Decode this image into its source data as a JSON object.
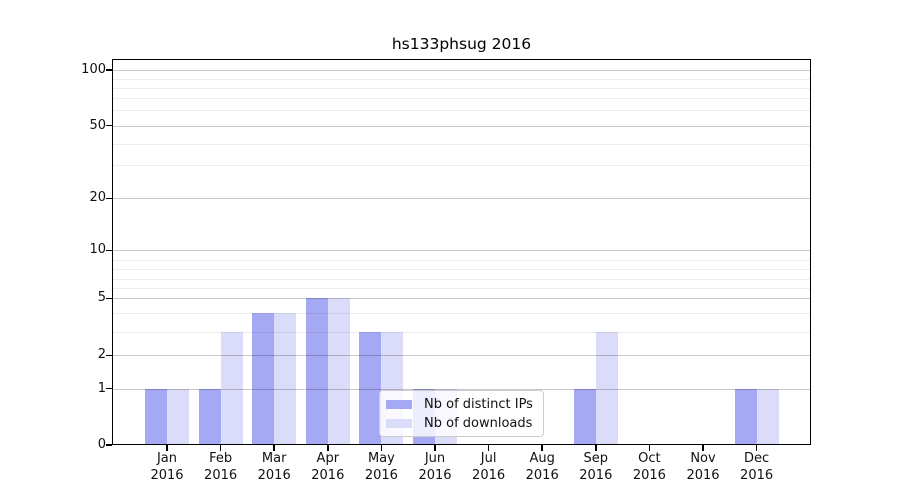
{
  "figure": {
    "title": "hs133phsug 2016"
  },
  "chart_data": {
    "type": "bar",
    "title": "hs133phsug 2016",
    "x": {
      "months": [
        "Jan",
        "Feb",
        "Mar",
        "Apr",
        "May",
        "Jun",
        "Jul",
        "Aug",
        "Sep",
        "Oct",
        "Nov",
        "Dec"
      ],
      "year": "2016"
    },
    "series": [
      {
        "name": "Nb of distinct IPs",
        "color": "#a5a8f3",
        "values": [
          1,
          1,
          4,
          5,
          3,
          1,
          0,
          0,
          1,
          0,
          0,
          1
        ]
      },
      {
        "name": "Nb of downloads",
        "color": "#dbdcfa",
        "values": [
          1,
          3,
          4,
          5,
          3,
          1,
          0,
          0,
          3,
          0,
          0,
          1
        ]
      }
    ],
    "yaxis": {
      "scale": "symlog",
      "tick_labels": [
        0,
        1,
        2,
        5,
        10,
        20,
        50,
        100
      ],
      "minor_ticks": [
        3,
        4,
        6,
        7,
        8,
        9,
        30,
        40,
        60,
        70,
        80,
        90
      ],
      "range": [
        0,
        120
      ]
    },
    "legend": {
      "entries": [
        "Nb of distinct IPs",
        "Nb of downloads"
      ],
      "location": "lower center"
    },
    "grid": true
  }
}
